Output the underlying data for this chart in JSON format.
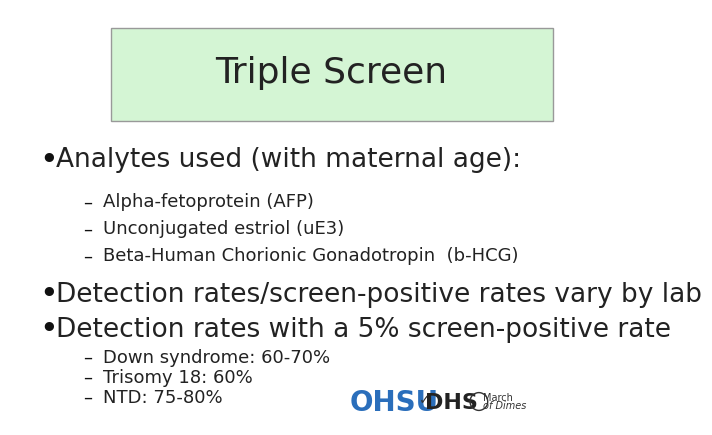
{
  "title": "Triple Screen",
  "title_box_color": "#d4f5d4",
  "background_color": "#ffffff",
  "bullet1": "Analytes used (with maternal age):",
  "sub1a": "Alpha-fetoprotein (AFP)",
  "sub1b": "Unconjugated estriol (uE3)",
  "sub1c": "Beta-Human Chorionic Gonadotropin  (b-HCG)",
  "bullet2": "Detection rates/screen-positive rates vary by lab",
  "bullet3": "Detection rates with a 5% screen-positive rate",
  "sub3a": "Down syndrome: 60-70%",
  "sub3b": "Trisomy 18: 60%",
  "sub3c": "NTD: 75-80%",
  "text_color": "#222222",
  "bullet_color": "#111111",
  "title_fontsize": 26,
  "bullet_large_fontsize": 19,
  "sub_fontsize": 13,
  "ohsu_color": "#2a6ebb",
  "dhs_color": "#222222"
}
